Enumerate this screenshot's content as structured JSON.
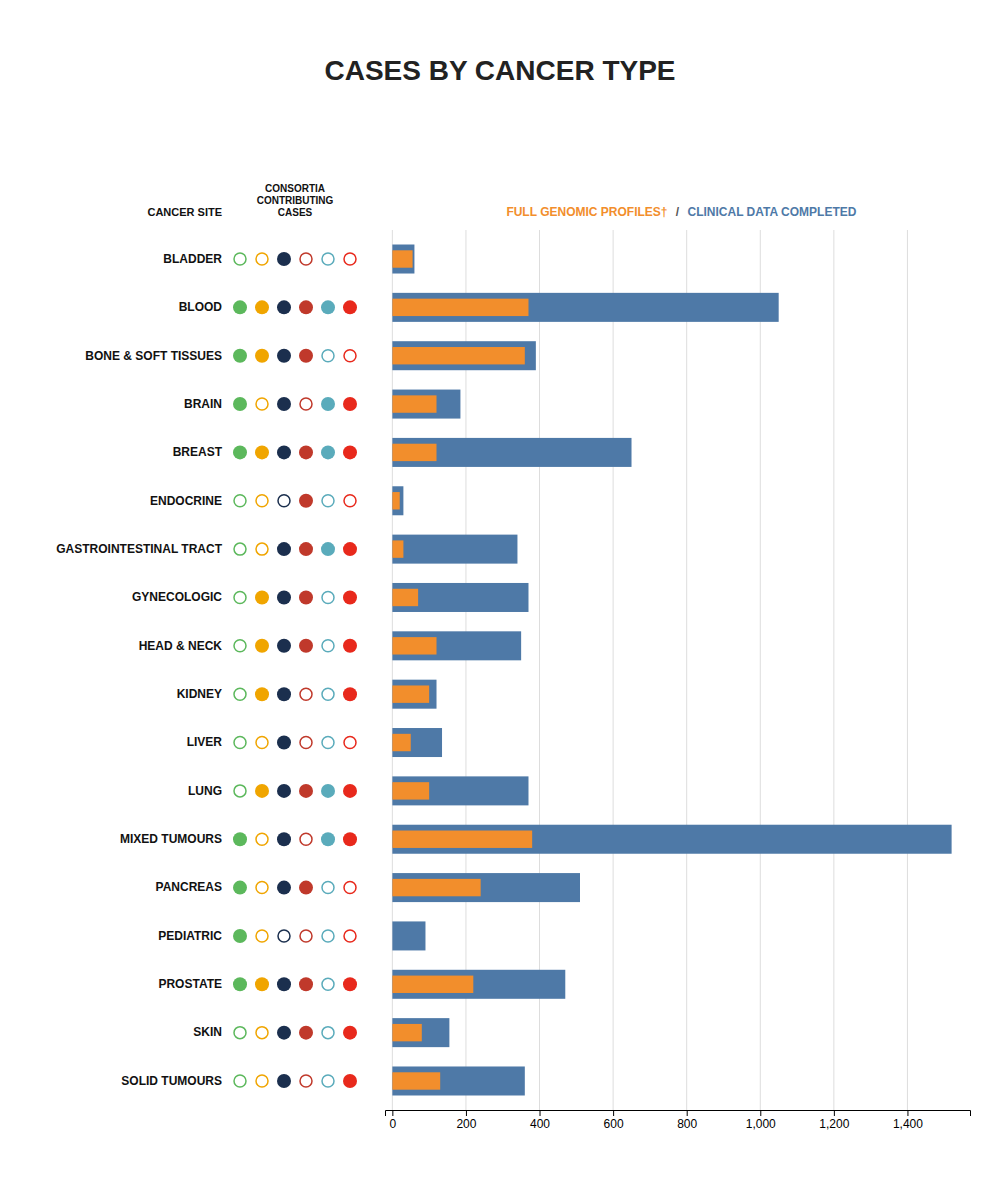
{
  "chart_data": {
    "type": "bar",
    "orientation": "horizontal",
    "title": "CASES BY CANCER TYPE",
    "ylabel": "CANCER SITE",
    "categories": [
      "BLADDER",
      "BLOOD",
      "BONE & SOFT TISSUES",
      "BRAIN",
      "BREAST",
      "ENDOCRINE",
      "GASTROINTESTINAL TRACT",
      "GYNECOLOGIC",
      "HEAD & NECK",
      "KIDNEY",
      "LIVER",
      "LUNG",
      "MIXED TUMOURS",
      "PANCREAS",
      "PEDIATRIC",
      "PROSTATE",
      "SKIN",
      "SOLID TUMOURS"
    ],
    "series": [
      {
        "name": "CLINICAL DATA COMPLETED",
        "values": [
          60,
          1050,
          390,
          185,
          650,
          30,
          340,
          370,
          350,
          120,
          135,
          370,
          1520,
          510,
          90,
          470,
          155,
          360
        ]
      },
      {
        "name": "FULL GENOMIC PROFILES†",
        "values": [
          55,
          370,
          360,
          120,
          120,
          20,
          30,
          70,
          120,
          100,
          50,
          100,
          380,
          240,
          0,
          220,
          80,
          130
        ]
      }
    ],
    "annotations": [
      "/"
    ],
    "consortia": {
      "label": "CONSORTIA\nCONTRIBUTING\nCASES",
      "series": [
        {
          "color": "#5cb85c",
          "values": [
            false,
            true,
            true,
            true,
            true,
            false,
            false,
            false,
            false,
            false,
            false,
            false,
            true,
            true,
            true,
            true,
            false,
            false
          ]
        },
        {
          "color": "#f0a500",
          "values": [
            false,
            true,
            true,
            false,
            true,
            false,
            false,
            true,
            true,
            true,
            false,
            true,
            false,
            false,
            false,
            true,
            false,
            false
          ]
        },
        {
          "color": "#1b2f4e",
          "values": [
            true,
            true,
            true,
            true,
            true,
            false,
            true,
            true,
            true,
            true,
            true,
            true,
            true,
            true,
            false,
            true,
            true,
            true
          ]
        },
        {
          "color": "#c0392b",
          "values": [
            false,
            true,
            true,
            false,
            true,
            true,
            true,
            true,
            true,
            false,
            false,
            true,
            false,
            true,
            false,
            true,
            true,
            false
          ]
        },
        {
          "color": "#5aabbb",
          "values": [
            false,
            true,
            false,
            true,
            true,
            false,
            true,
            false,
            false,
            false,
            false,
            true,
            true,
            false,
            false,
            false,
            false,
            false
          ]
        },
        {
          "color": "#e8291c",
          "values": [
            false,
            true,
            false,
            true,
            true,
            false,
            true,
            true,
            true,
            true,
            false,
            true,
            true,
            false,
            false,
            true,
            true,
            true
          ]
        }
      ]
    },
    "xlim": [
      -20,
      1570
    ],
    "xticks": [
      0,
      200,
      400,
      600,
      800,
      {
        "value": 1000,
        "label": "1,000"
      },
      {
        "value": 1200,
        "label": "1,200"
      },
      {
        "value": 1400,
        "label": "1,400"
      }
    ],
    "grid": true
  }
}
